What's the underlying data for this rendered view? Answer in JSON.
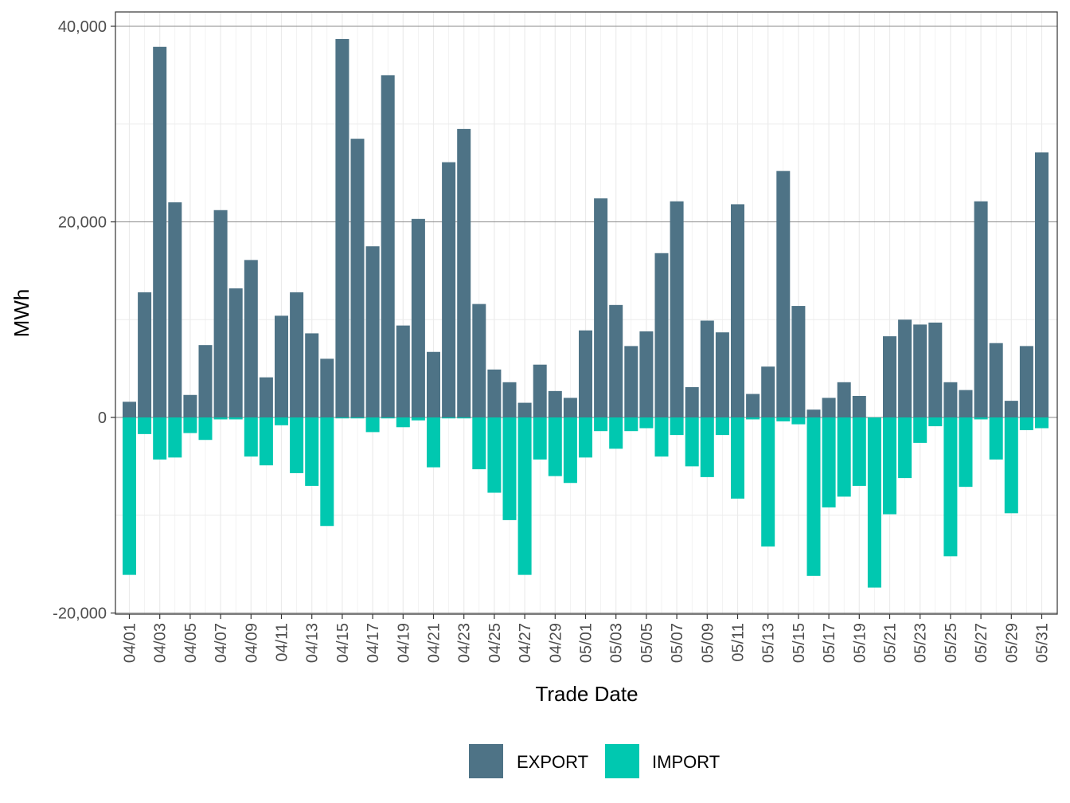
{
  "chart_data": {
    "type": "bar",
    "xlabel": "Trade Date",
    "ylabel": "MWh",
    "ylim": [
      -20000,
      40000
    ],
    "y_ticks": [
      -20000,
      0,
      20000,
      40000
    ],
    "y_tick_labels": [
      "-20,000",
      "0",
      "20,000",
      "40,000"
    ],
    "grid": true,
    "legend_position": "bottom",
    "categories": [
      "04/01",
      "04/02",
      "04/03",
      "04/04",
      "04/05",
      "04/06",
      "04/07",
      "04/08",
      "04/09",
      "04/10",
      "04/11",
      "04/12",
      "04/13",
      "04/14",
      "04/15",
      "04/16",
      "04/17",
      "04/18",
      "04/19",
      "04/20",
      "04/21",
      "04/22",
      "04/23",
      "04/24",
      "04/25",
      "04/26",
      "04/27",
      "04/28",
      "04/29",
      "04/30",
      "05/01",
      "05/02",
      "05/03",
      "05/04",
      "05/05",
      "05/06",
      "05/07",
      "05/08",
      "05/09",
      "05/10",
      "05/11",
      "05/12",
      "05/13",
      "05/14",
      "05/15",
      "05/16",
      "05/17",
      "05/18",
      "05/19",
      "05/20",
      "05/21",
      "05/22",
      "05/23",
      "05/24",
      "05/25",
      "05/26",
      "05/27",
      "05/28",
      "05/29",
      "05/30",
      "05/31"
    ],
    "tick_labels": [
      "04/01",
      "04/03",
      "04/05",
      "04/07",
      "04/09",
      "04/11",
      "04/13",
      "04/15",
      "04/17",
      "04/19",
      "04/21",
      "04/23",
      "04/25",
      "04/27",
      "04/29",
      "05/01",
      "05/03",
      "05/05",
      "05/07",
      "05/09",
      "05/11",
      "05/13",
      "05/15",
      "05/17",
      "05/19",
      "05/21",
      "05/23",
      "05/25",
      "05/27",
      "05/29",
      "05/31"
    ],
    "series": [
      {
        "name": "EXPORT",
        "color": "#4e7386",
        "values": [
          1600,
          12800,
          37900,
          22000,
          2300,
          7400,
          21200,
          13200,
          16100,
          4100,
          10400,
          12800,
          8600,
          6000,
          38700,
          28500,
          17500,
          35000,
          9400,
          20300,
          6700,
          26100,
          29500,
          11600,
          4900,
          3600,
          1500,
          5400,
          2700,
          2000,
          8900,
          22400,
          11500,
          7300,
          8800,
          16800,
          22100,
          3100,
          9900,
          8700,
          21800,
          2400,
          5200,
          25200,
          11400,
          800,
          2000,
          3600,
          2200,
          0,
          8300,
          10000,
          9500,
          9700,
          3600,
          2800,
          22100,
          7600,
          1700,
          7300,
          27100
        ]
      },
      {
        "name": "IMPORT",
        "color": "#00c8b0",
        "values": [
          -16100,
          -1700,
          -4300,
          -4100,
          -1600,
          -2300,
          -200,
          -200,
          -4000,
          -4900,
          -800,
          -5700,
          -7000,
          -11100,
          -100,
          -100,
          -1500,
          -100,
          -1000,
          -300,
          -5100,
          -100,
          -100,
          -5300,
          -7700,
          -10500,
          -16100,
          -4300,
          -6000,
          -6700,
          -4100,
          -1400,
          -3200,
          -1400,
          -1100,
          -4000,
          -1800,
          -5000,
          -6100,
          -1800,
          -8300,
          -200,
          -13200,
          -400,
          -700,
          -16200,
          -9200,
          -8100,
          -7000,
          -17400,
          -9900,
          -6200,
          -2600,
          -900,
          -14200,
          -7100,
          -200,
          -4300,
          -9800,
          -1300,
          -1100
        ]
      }
    ]
  }
}
